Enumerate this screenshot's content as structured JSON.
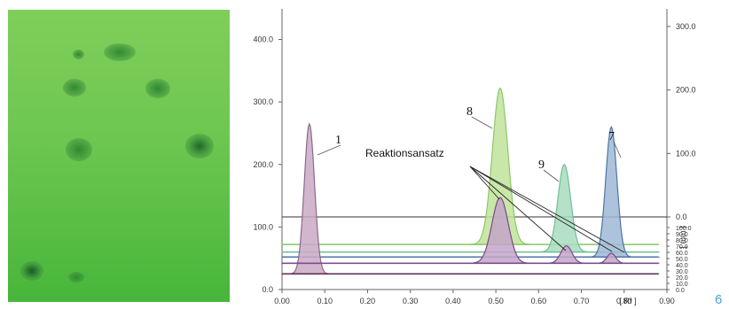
{
  "plate_image": {
    "description_free": true,
    "spots": [
      {
        "id": "s1",
        "color": "#2f8a2f"
      },
      {
        "id": "s2",
        "color": "#2f8a2f"
      },
      {
        "id": "s3",
        "color": "#2f8a2f"
      },
      {
        "id": "s4",
        "color": "#2f8a2f"
      },
      {
        "id": "s5",
        "color": "#2f8a2f"
      },
      {
        "id": "s6",
        "color": "#1f6a2a"
      },
      {
        "id": "s7",
        "color": "#155a25"
      },
      {
        "id": "s8",
        "color": "#2f8a2f"
      }
    ]
  },
  "chart_data": {
    "type": "line",
    "xlabel": "[ Rf ]",
    "xlim": [
      0.0,
      0.9
    ],
    "x_ticks": [
      "0.00",
      "0.10",
      "0.20",
      "0.30",
      "0.40",
      "0.50",
      "0.60",
      "0.70",
      "0.80",
      "0.90"
    ],
    "ylim_left": [
      0,
      450
    ],
    "y_ticks_left": [
      "0.0",
      "100.0",
      "200.0",
      "300.0",
      "400.0"
    ],
    "right_axis_upper_ticks": [
      "0.0",
      "100.0",
      "200.0",
      "300.0"
    ],
    "right_axis_upper_label": "[ mm ]",
    "right_axis_lower_ticks": [
      "100.0",
      "90.0",
      "80.0",
      "70.0",
      "60.0",
      "50.0",
      "40.0",
      "30.0",
      "20.0",
      "10.0",
      "0.0"
    ],
    "baseline_hline": 115,
    "peak_labels": [
      "1",
      "8",
      "7",
      "9"
    ],
    "annotation": "Reaktionsansatz",
    "series": [
      {
        "label": "1",
        "color": "#c9a9c6",
        "stroke": "#8a6a8a",
        "baseline": 25,
        "peaks": [
          {
            "x": 0.064,
            "height": 240,
            "width": 0.012
          }
        ]
      },
      {
        "label": "8",
        "color": "#bfe39a",
        "stroke": "#8cc86a",
        "baseline": 72,
        "peaks": [
          {
            "x": 0.51,
            "height": 250,
            "width": 0.018
          }
        ]
      },
      {
        "label": "9",
        "color": "#a8dcc0",
        "stroke": "#6fbf95",
        "baseline": 60,
        "peaks": [
          {
            "x": 0.66,
            "height": 140,
            "width": 0.015
          }
        ]
      },
      {
        "label": "7",
        "color": "#9fb8d6",
        "stroke": "#4f74a8",
        "baseline": 52,
        "peaks": [
          {
            "x": 0.77,
            "height": 208,
            "width": 0.013
          }
        ]
      },
      {
        "label": "Reaktionsansatz",
        "color": "#c4a4c9",
        "stroke": "#7a4a8a",
        "baseline": 42,
        "peaks": [
          {
            "x": 0.51,
            "height": 105,
            "width": 0.019
          },
          {
            "x": 0.665,
            "height": 28,
            "width": 0.013
          },
          {
            "x": 0.77,
            "height": 16,
            "width": 0.01
          }
        ]
      }
    ]
  },
  "page_number": "6"
}
